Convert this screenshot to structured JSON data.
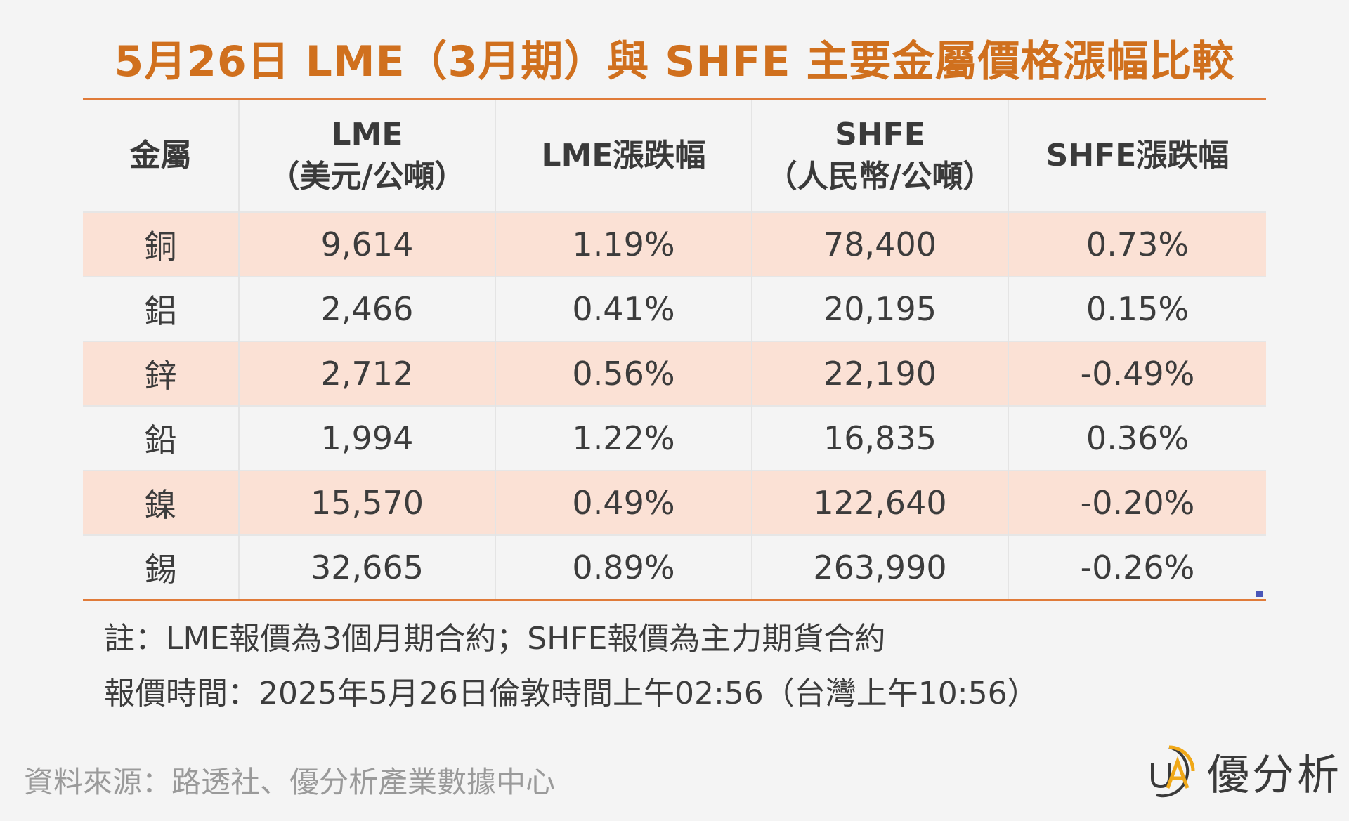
{
  "title": "5月26日 LME（3月期）與 SHFE 主要金屬價格漲幅比較",
  "table": {
    "headers": [
      {
        "line1": "金屬",
        "line2": ""
      },
      {
        "line1": "LME",
        "line2": "（美元/公噸）"
      },
      {
        "line1": "LME漲跌幅",
        "line2": ""
      },
      {
        "line1": "SHFE",
        "line2": "（人民幣/公噸）"
      },
      {
        "line1": "SHFE漲跌幅",
        "line2": ""
      }
    ],
    "rows": [
      {
        "metal": "銅",
        "lme_price": "9,614",
        "lme_change": "1.19%",
        "shfe_price": "78,400",
        "shfe_change": "0.73%"
      },
      {
        "metal": "鋁",
        "lme_price": "2,466",
        "lme_change": "0.41%",
        "shfe_price": "20,195",
        "shfe_change": "0.15%"
      },
      {
        "metal": "鋅",
        "lme_price": "2,712",
        "lme_change": "0.56%",
        "shfe_price": "22,190",
        "shfe_change": "-0.49%"
      },
      {
        "metal": "鉛",
        "lme_price": "1,994",
        "lme_change": "1.22%",
        "shfe_price": "16,835",
        "shfe_change": "0.36%"
      },
      {
        "metal": "鎳",
        "lme_price": "15,570",
        "lme_change": "0.49%",
        "shfe_price": "122,640",
        "shfe_change": "-0.20%"
      },
      {
        "metal": "錫",
        "lme_price": "32,665",
        "lme_change": "0.89%",
        "shfe_price": "263,990",
        "shfe_change": "-0.26%"
      }
    ]
  },
  "notes": {
    "note1": "註：LME報價為3個月期合約；SHFE報價為主力期貨合約",
    "note2": "報價時間：2025年5月26日倫敦時間上午02:56（台灣上午10:56）"
  },
  "source": "資料來源：路透社、優分析產業數據中心",
  "brand": {
    "name": "優分析",
    "logo_letters": "UA",
    "icon": "ua-logo-icon"
  },
  "colors": {
    "title": "#d0701e",
    "rule": "#e07b39",
    "highlight_row": "#fbe1d5",
    "background": "#f4f4f4",
    "logo_ring": "#f0a818"
  }
}
